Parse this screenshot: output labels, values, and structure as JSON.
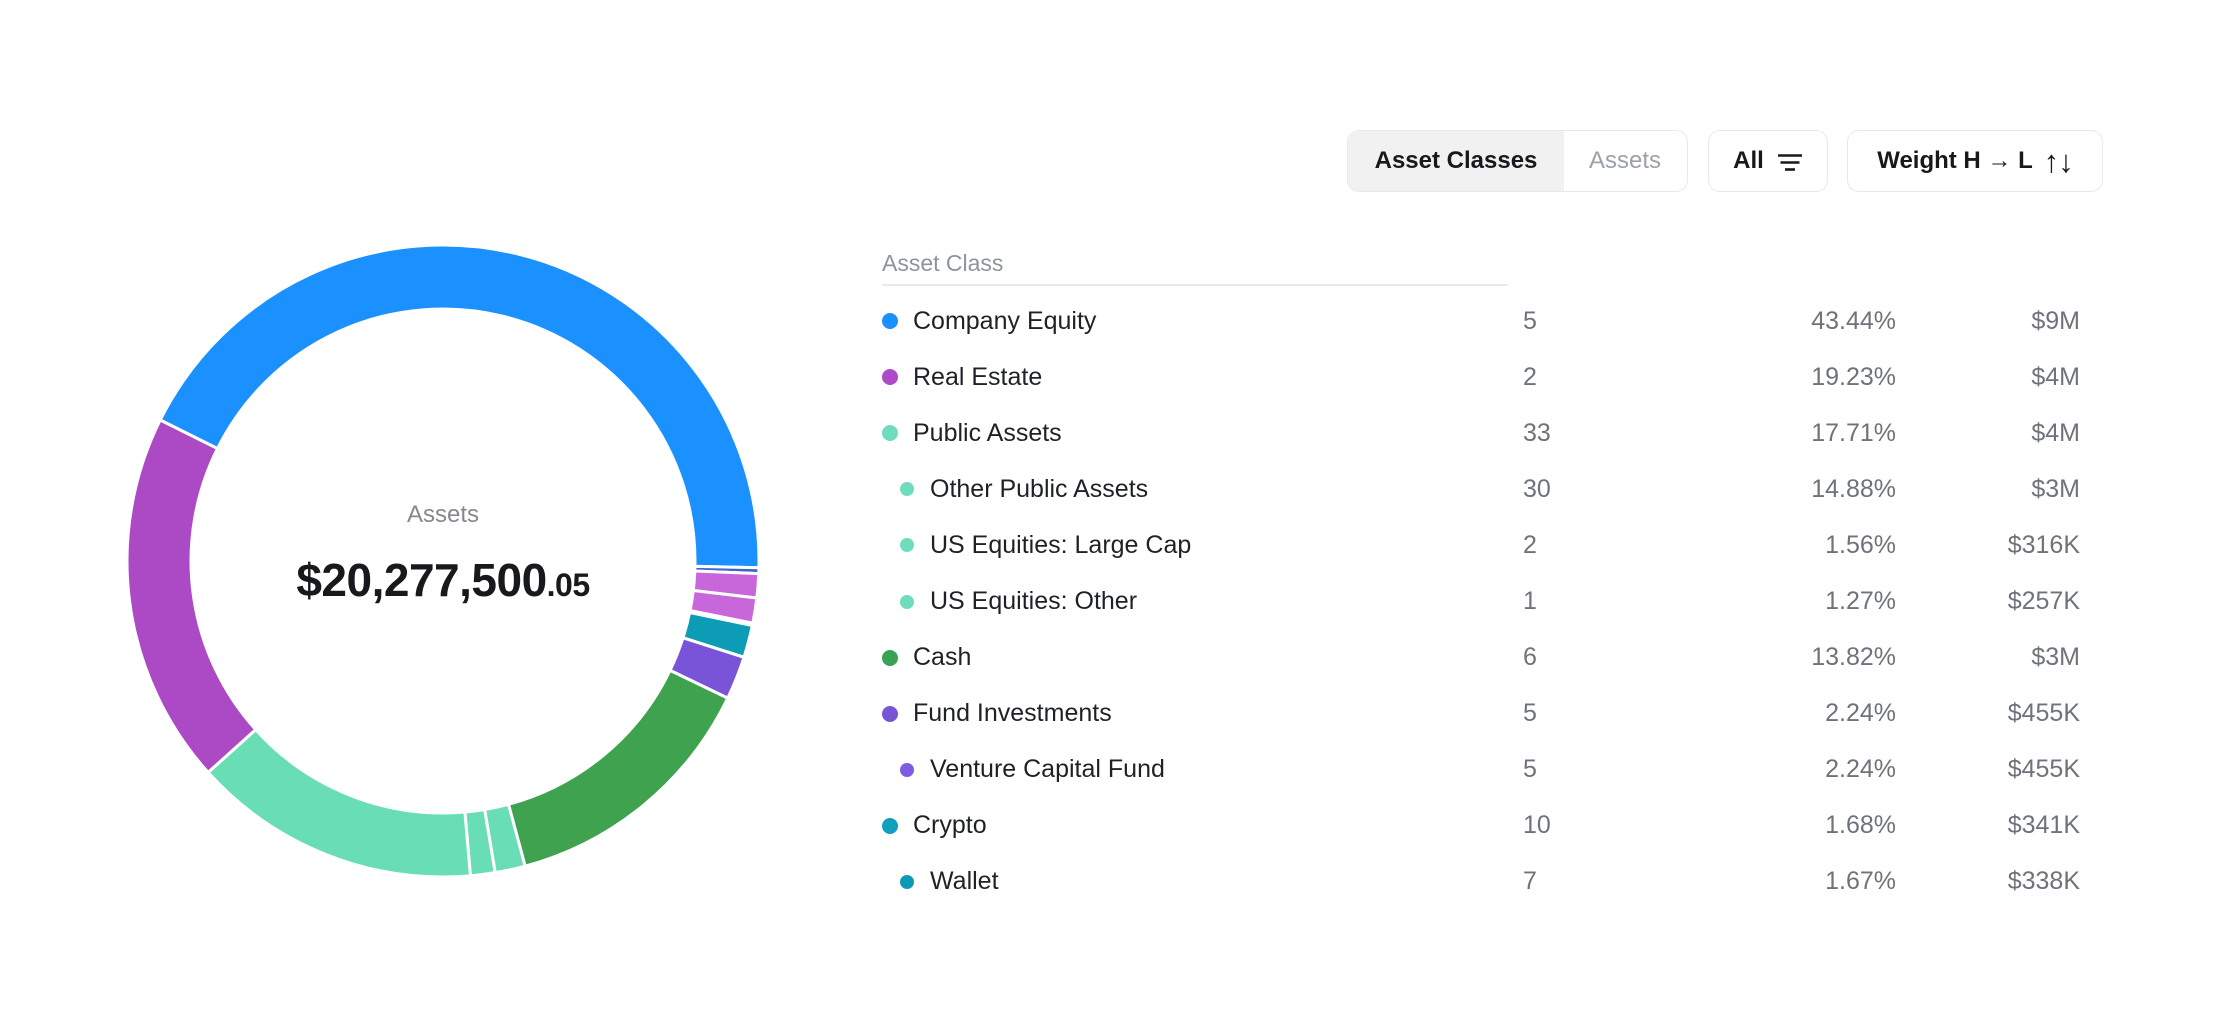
{
  "page": {
    "background": "#ffffff"
  },
  "toolbar": {
    "view_tabs": [
      {
        "label": "Asset Classes",
        "active": true
      },
      {
        "label": "Assets",
        "active": false
      }
    ],
    "filter": {
      "label": "All",
      "icon": "filter-lines-icon"
    },
    "sort": {
      "label": "Weight H → L",
      "icon": "sort-arrows-icon",
      "icon_glyph": "↑↓"
    }
  },
  "chart_data": {
    "type": "donut",
    "title": "Assets",
    "center_label": "Assets",
    "center_value": "$20,277,500",
    "center_value_decimals": ".05",
    "center_value_full": "$20,277,500.05",
    "start_angle_deg": -63.5,
    "inner_radius_ratio": 0.797,
    "legend_position": "right-table",
    "segments": [
      {
        "label": "Company Equity",
        "weight_pct": 43.44,
        "color": "#1b90ff"
      },
      {
        "label": "",
        "weight_pct": 0.3,
        "color": "#3c64d0"
      },
      {
        "label": "",
        "weight_pct": 1.25,
        "color": "#c867da"
      },
      {
        "label": "",
        "weight_pct": 1.3,
        "color": "#c867da"
      },
      {
        "label": "",
        "weight_pct": 0.12,
        "color": "#0c9cb5"
      },
      {
        "label": "Wallet",
        "weight_pct": 1.67,
        "color": "#0c9cb5"
      },
      {
        "label": "Venture Capital Fund",
        "weight_pct": 2.24,
        "color": "#7953d8"
      },
      {
        "label": "Cash",
        "weight_pct": 13.82,
        "color": "#3ea24e"
      },
      {
        "label": "US Equities: Large Cap",
        "weight_pct": 1.56,
        "color": "#69ddb6"
      },
      {
        "label": "US Equities: Other",
        "weight_pct": 1.27,
        "color": "#69ddb6"
      },
      {
        "label": "Other Public Assets",
        "weight_pct": 14.88,
        "color": "#69ddb6"
      },
      {
        "label": "Real Estate",
        "weight_pct": 19.23,
        "color": "#ac4ac5"
      }
    ]
  },
  "table": {
    "header": "Asset Class",
    "rows": [
      {
        "label": "Company Equity",
        "count": "5",
        "weight": "43.44%",
        "value": "$9M",
        "color": "#1b90ff",
        "indent": 0
      },
      {
        "label": "Real Estate",
        "count": "2",
        "weight": "19.23%",
        "value": "$4M",
        "color": "#ad4ac8",
        "indent": 0
      },
      {
        "label": "Public Assets",
        "count": "33",
        "weight": "17.71%",
        "value": "$4M",
        "color": "#6fddbd",
        "indent": 0
      },
      {
        "label": "Other Public Assets",
        "count": "30",
        "weight": "14.88%",
        "value": "$3M",
        "color": "#6fddbd",
        "indent": 1
      },
      {
        "label": "US Equities: Large Cap",
        "count": "2",
        "weight": "1.56%",
        "value": "$316K",
        "color": "#6fddbd",
        "indent": 1
      },
      {
        "label": "US Equities: Other",
        "count": "1",
        "weight": "1.27%",
        "value": "$257K",
        "color": "#6fddbd",
        "indent": 1
      },
      {
        "label": "Cash",
        "count": "6",
        "weight": "13.82%",
        "value": "$3M",
        "color": "#39a254",
        "indent": 0
      },
      {
        "label": "Fund Investments",
        "count": "5",
        "weight": "2.24%",
        "value": "$455K",
        "color": "#7656d7",
        "indent": 0
      },
      {
        "label": "Venture Capital Fund",
        "count": "5",
        "weight": "2.24%",
        "value": "$455K",
        "color": "#7e5ce2",
        "indent": 1
      },
      {
        "label": "Crypto",
        "count": "10",
        "weight": "1.68%",
        "value": "$341K",
        "color": "#0fa0be",
        "indent": 0
      },
      {
        "label": "Wallet",
        "count": "7",
        "weight": "1.67%",
        "value": "$338K",
        "color": "#0c99b6",
        "indent": 1
      }
    ]
  }
}
